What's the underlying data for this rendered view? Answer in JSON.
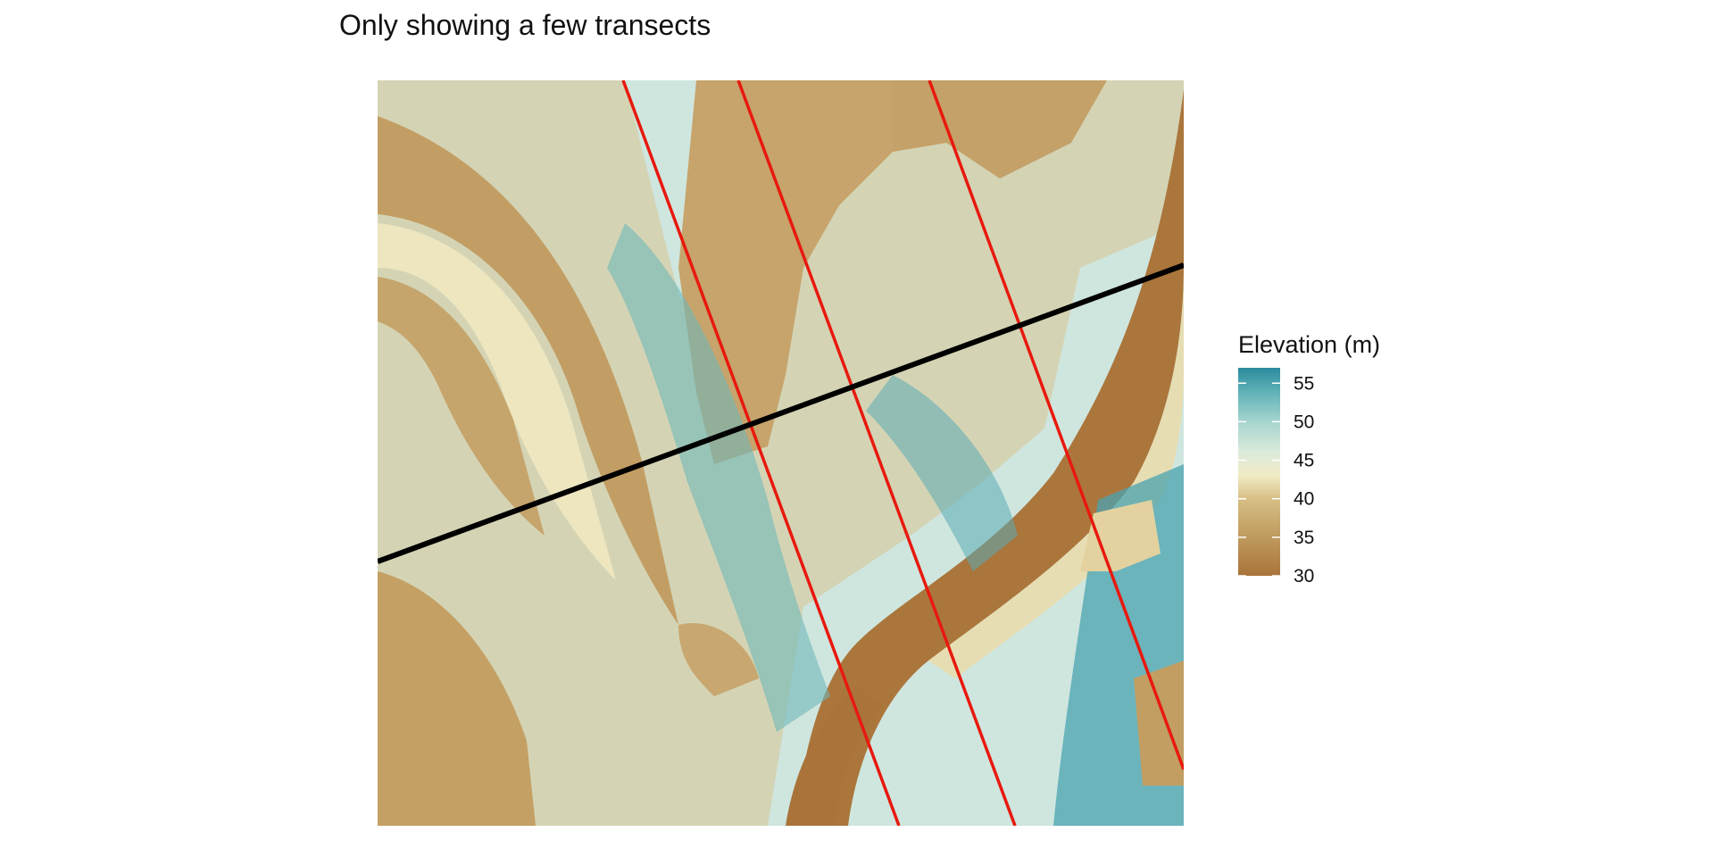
{
  "chart_data": {
    "type": "heatmap",
    "title": "Only showing a few transects",
    "xlabel": "",
    "ylabel": "",
    "axes_visible": false,
    "grid": false,
    "legend": {
      "title": "Elevation (m)",
      "placement": "right",
      "ticks": [
        55,
        50,
        45,
        40,
        35,
        30
      ],
      "range": [
        30,
        57
      ]
    },
    "color_scale": {
      "low_color": "#a9733a",
      "mid_color": "#f3edc8",
      "high_color": "#2b8a9d",
      "stops": [
        {
          "value": 30,
          "color": "#a9733a"
        },
        {
          "value": 35,
          "color": "#bf9a5e"
        },
        {
          "value": 40,
          "color": "#d7bf86"
        },
        {
          "value": 43,
          "color": "#f1ebc4"
        },
        {
          "value": 46,
          "color": "#dcebdc"
        },
        {
          "value": 50,
          "color": "#a6d5cf"
        },
        {
          "value": 54,
          "color": "#5db0b6"
        },
        {
          "value": 57,
          "color": "#2b8a9d"
        }
      ]
    },
    "transects": [
      {
        "color": "#e8190e",
        "highlighted": false
      },
      {
        "color": "#e8190e",
        "highlighted": false
      },
      {
        "color": "#e8190e",
        "highlighted": false
      },
      {
        "color": "#000000",
        "highlighted": true
      }
    ]
  }
}
